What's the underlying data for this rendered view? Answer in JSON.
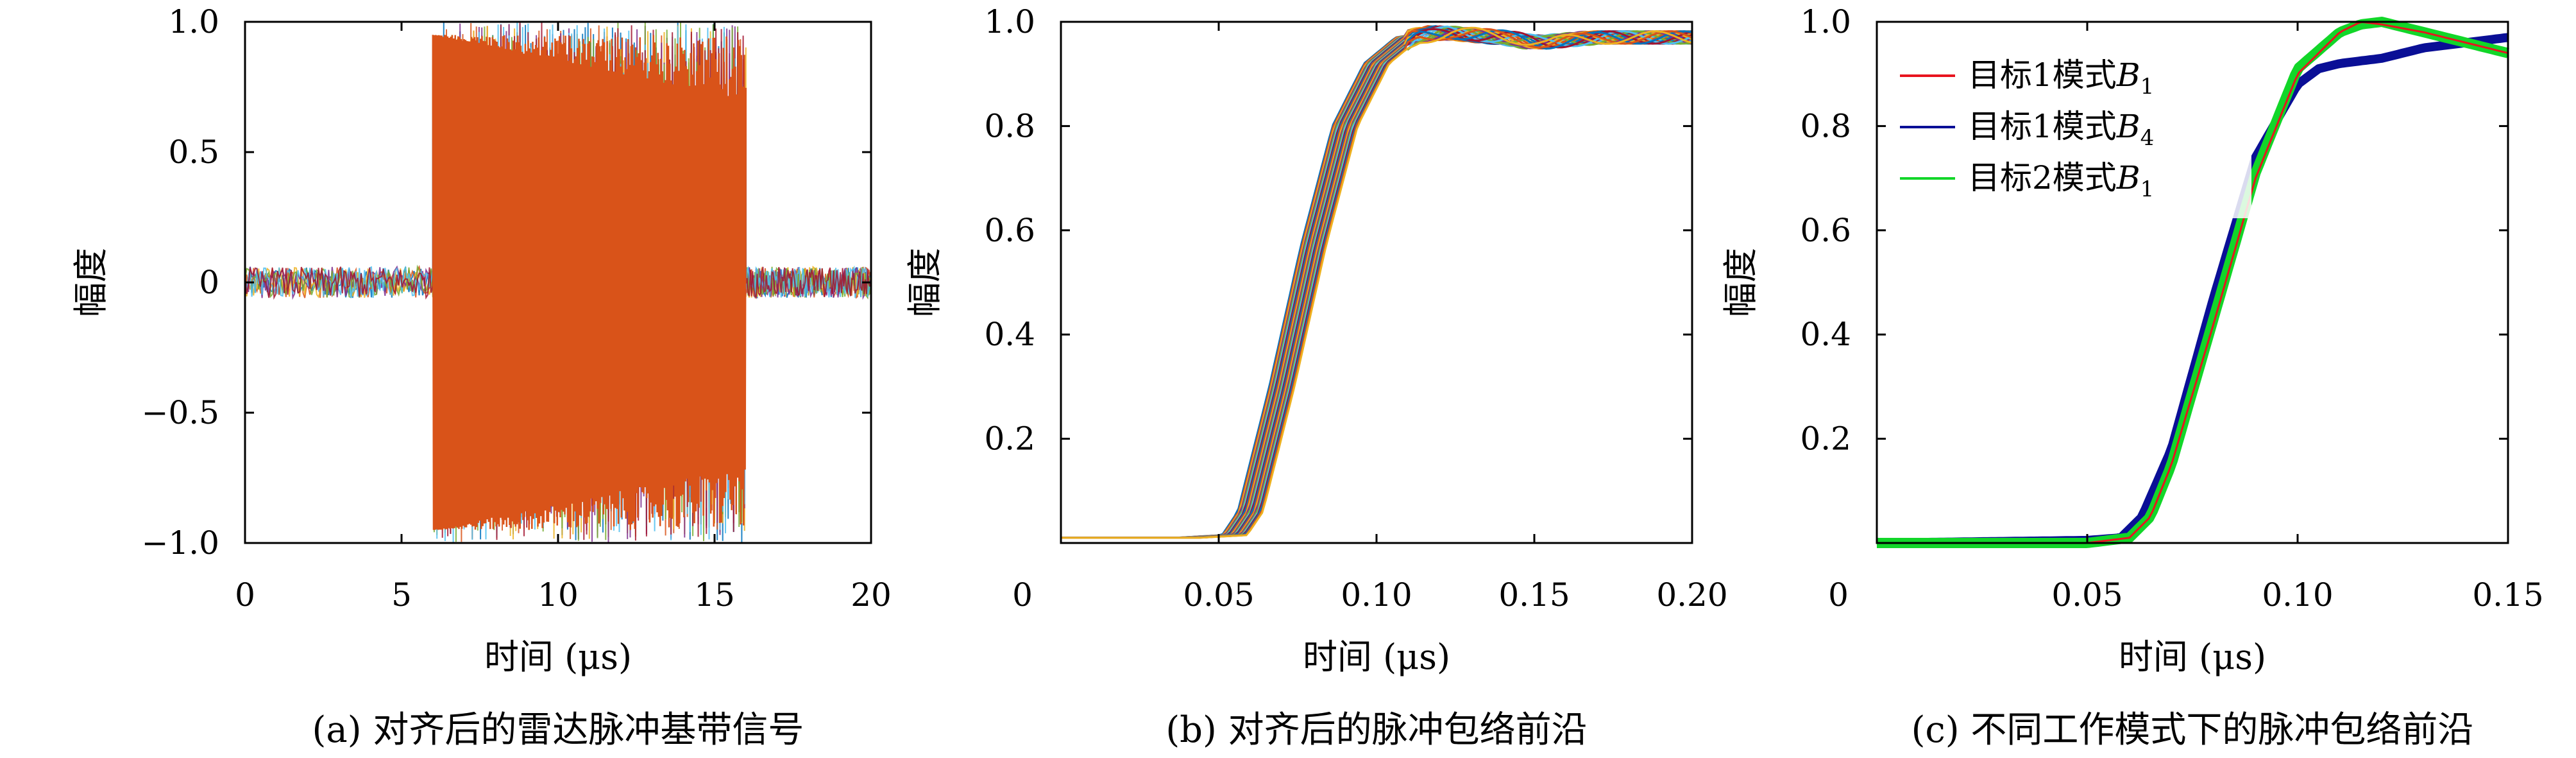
{
  "chart_data": [
    {
      "type": "line",
      "caption": "(a) 对齐后的雷达脉冲基带信号",
      "xlabel": "时间 (μs)",
      "ylabel": "幅度",
      "xlim": [
        0,
        20
      ],
      "ylim": [
        -1.0,
        1.0
      ],
      "xticks": [
        0,
        5,
        10,
        15,
        20
      ],
      "xtick_labels": [
        "0",
        "5",
        "10",
        "15",
        "20"
      ],
      "yticks": [
        -1.0,
        -0.5,
        0,
        0.5,
        1.0
      ],
      "ytick_labels": [
        "−1.0",
        "−0.5",
        "0",
        "0.5",
        "1.0"
      ],
      "grid": false,
      "series_count": "many overlaid pulses",
      "pulse_start": 6.0,
      "pulse_end": 16.0,
      "noise_level": 0.06,
      "pulse_amplitude": 1.0
    },
    {
      "type": "line",
      "caption": "(b) 对齐后的脉冲包络前沿",
      "xlabel": "时间 (μs)",
      "ylabel": "幅度",
      "xlim": [
        0,
        0.2
      ],
      "ylim": [
        0,
        1.0
      ],
      "xticks": [
        0.05,
        0.1,
        0.15,
        0.2
      ],
      "xtick_labels": [
        "0.05",
        "0.10",
        "0.15",
        "0.20"
      ],
      "yticks": [
        0.2,
        0.4,
        0.6,
        0.8,
        1.0
      ],
      "ytick_labels": [
        "0.2",
        "0.4",
        "0.6",
        "0.8",
        "1.0"
      ],
      "origin_label": "0",
      "grid": false,
      "envelope_points": {
        "x": [
          0,
          0.04,
          0.055,
          0.06,
          0.07,
          0.08,
          0.09,
          0.1,
          0.11,
          0.12,
          0.14,
          0.15,
          0.17,
          0.2
        ],
        "y": [
          0.01,
          0.01,
          0.015,
          0.06,
          0.3,
          0.57,
          0.8,
          0.92,
          0.97,
          0.98,
          0.97,
          0.96,
          0.97,
          0.97
        ]
      }
    },
    {
      "type": "line",
      "caption": "(c) 不同工作模式下的脉冲包络前沿",
      "xlabel": "时间 (μs)",
      "ylabel": "幅度",
      "xlim": [
        0,
        0.15
      ],
      "ylim": [
        0,
        1.0
      ],
      "xticks": [
        0.05,
        0.1,
        0.15
      ],
      "xtick_labels": [
        "0.05",
        "0.10",
        "0.15"
      ],
      "yticks": [
        0.2,
        0.4,
        0.6,
        0.8,
        1.0
      ],
      "ytick_labels": [
        "0.2",
        "0.4",
        "0.6",
        "0.8",
        "1.0"
      ],
      "origin_label": "0",
      "legend_position": "top-left",
      "grid": false,
      "series": [
        {
          "name": "目标1模式B1",
          "legend_text": "目标1模式",
          "legend_var": "B",
          "legend_sub": "1",
          "color": "#e8141e",
          "x": [
            0,
            0.05,
            0.06,
            0.065,
            0.07,
            0.08,
            0.09,
            0.1,
            0.11,
            0.115,
            0.12,
            0.13,
            0.14,
            0.15
          ],
          "y": [
            0.0,
            0.0,
            0.01,
            0.05,
            0.15,
            0.42,
            0.7,
            0.9,
            0.98,
            1.0,
            0.995,
            0.98,
            0.96,
            0.94
          ]
        },
        {
          "name": "目标1模式B4",
          "legend_text": "目标1模式",
          "legend_var": "B",
          "legend_sub": "4",
          "color": "#0a0f96",
          "x": [
            0,
            0.05,
            0.058,
            0.063,
            0.07,
            0.08,
            0.09,
            0.1,
            0.105,
            0.11,
            0.12,
            0.13,
            0.14,
            0.15
          ],
          "y": [
            0.0,
            0.005,
            0.01,
            0.05,
            0.18,
            0.47,
            0.74,
            0.88,
            0.91,
            0.92,
            0.93,
            0.95,
            0.96,
            0.97
          ]
        },
        {
          "name": "目标2模式B1",
          "legend_text": "目标2模式",
          "legend_var": "B",
          "legend_sub": "1",
          "color": "#12d629",
          "x": [
            0,
            0.05,
            0.06,
            0.065,
            0.07,
            0.08,
            0.09,
            0.1,
            0.11,
            0.115,
            0.12,
            0.13,
            0.14,
            0.15
          ],
          "y": [
            0.0,
            0.0,
            0.01,
            0.05,
            0.15,
            0.43,
            0.71,
            0.91,
            0.98,
            0.995,
            1.0,
            0.98,
            0.96,
            0.94
          ]
        }
      ]
    }
  ],
  "colors": {
    "pulse_palette": [
      "#0072bd",
      "#d95319",
      "#edb120",
      "#7e2f8e",
      "#77ac30",
      "#4dbeee",
      "#a2142f"
    ],
    "dominant_pulse": "#d95319"
  }
}
